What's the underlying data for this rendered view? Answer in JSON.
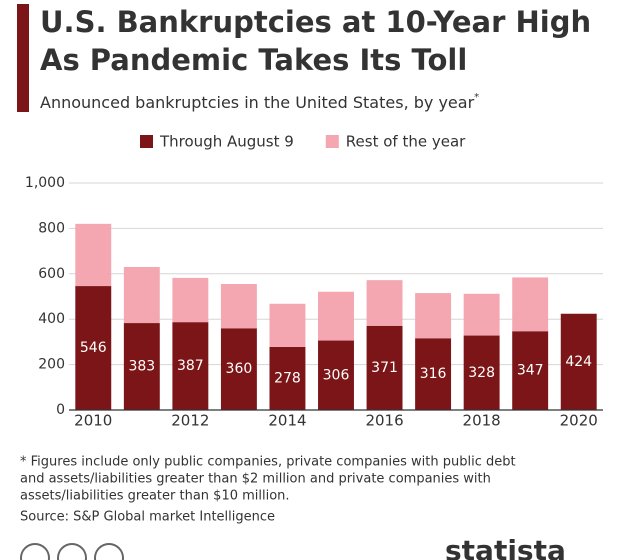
{
  "chart_data": {
    "type": "stacked-bar",
    "title": [
      "U.S. Bankruptcies at 10-Year High",
      "As Pandemic Takes Its Toll"
    ],
    "subtitle": "Announced bankruptcies in the United States, by year",
    "subtitle_mark": "*",
    "categories": [
      "2010",
      null,
      "2012",
      null,
      "2014",
      null,
      "2016",
      null,
      "2018",
      null,
      "2020"
    ],
    "series": [
      {
        "name": "Through August 9",
        "color": "#7b1518",
        "values": [
          546,
          383,
          387,
          360,
          278,
          306,
          371,
          316,
          328,
          347,
          424
        ]
      },
      {
        "name": "Rest of the year",
        "color": "#f4a7b1",
        "values": [
          274,
          247,
          195,
          195,
          190,
          215,
          201,
          199,
          184,
          237,
          null
        ]
      }
    ],
    "ylim": [
      0,
      1000
    ],
    "yticks": [
      0,
      200,
      400,
      600,
      800,
      {
        "value": 1000,
        "label": "1,000"
      }
    ],
    "grid": true,
    "footnote": [
      "* Figures include only public companies, private companies with public debt",
      "and assets/liabilities greater than $2 million and private companies with",
      "assets/liabilities greater than $10 million."
    ],
    "source": "Source: S&P Global market Intelligence",
    "brand": "statista"
  }
}
